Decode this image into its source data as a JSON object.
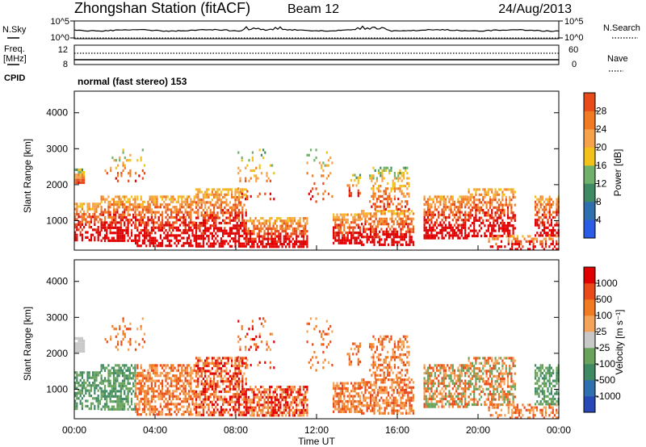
{
  "header": {
    "station": "Zhongshan Station (fitACF)",
    "beam": "Beam 12",
    "date": "24/Aug/2013"
  },
  "mode": "normal (fast stereo) 153",
  "colors": {
    "power": [
      "#2b5ce6",
      "#2f6fb0",
      "#3f8a62",
      "#6fb06a",
      "#f2c21a",
      "#f6a24a",
      "#f07b22",
      "#e84a1a",
      "#e00000"
    ],
    "velocity": [
      "#2848b8",
      "#2f6fb0",
      "#3f8a62",
      "#6aa35c",
      "#c8c8c8",
      "#f5a35a",
      "#f07b22",
      "#ea4a1a",
      "#e00000"
    ]
  },
  "chart_data": [
    {
      "type": "line",
      "name": "noise-panel",
      "left_label": "N.Sky",
      "left_ticks": [
        "10^5",
        "10^0"
      ],
      "right_label": "N.Search",
      "right_ticks": [
        "10^5",
        "10^0"
      ]
    },
    {
      "type": "line",
      "name": "freq-panel",
      "left_label_1": "Freq.",
      "left_label_2": "[MHz]",
      "left_ticks": [
        "12",
        "8"
      ],
      "right_label": "Nave",
      "right_ticks": [
        "60",
        "0"
      ],
      "cpid_label": "CPID"
    },
    {
      "type": "heatmap",
      "name": "power",
      "ylabel": "Slant Range [km]",
      "yticks": [
        1000,
        2000,
        3000,
        4000
      ],
      "ylim": [
        180,
        4600
      ],
      "xlim": [
        0,
        24
      ],
      "colorbar": {
        "label": "Power [dB]",
        "ticks": [
          "4",
          "8",
          "12",
          "16",
          "20",
          "24",
          "28"
        ]
      }
    },
    {
      "type": "heatmap",
      "name": "velocity",
      "ylabel": "Slant Range [km]",
      "yticks": [
        1000,
        2000,
        3000,
        4000
      ],
      "ylim": [
        180,
        4600
      ],
      "xlim": [
        0,
        24
      ],
      "xlabel": "Time UT",
      "xticks": [
        "00:00",
        "04:00",
        "08:00",
        "12:00",
        "16:00",
        "20:00",
        "00:00"
      ],
      "colorbar": {
        "label": "Velocity [m s⁻¹]",
        "ticks": [
          "1000",
          "500",
          "100",
          "25",
          "-25",
          "-100",
          "-500",
          "-1000"
        ]
      }
    }
  ]
}
